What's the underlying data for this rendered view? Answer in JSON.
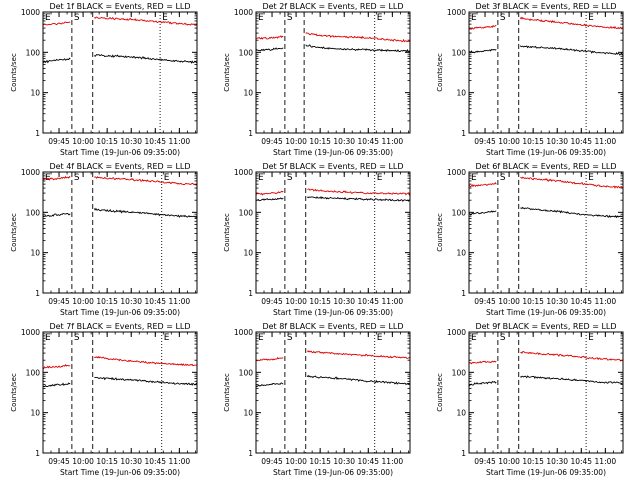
{
  "figure": {
    "series_names": {
      "events": "Events",
      "lld": "LLD"
    },
    "colors": {
      "events": "#000000",
      "lld": "#dd0000",
      "axes": "#000000",
      "background": "#ffffff"
    }
  },
  "chart_data": [
    {
      "type": "line",
      "panel": 1,
      "title": "Det 1f BLACK = Events, RED = LLD",
      "xlabel": "Start Time (19-Jun-06 09:35:00)",
      "ylabel": "Counts/sec",
      "y_scale": "log",
      "ylim": [
        1,
        1000
      ],
      "xlim_minutes_after_0935": [
        0,
        96
      ],
      "x_ticks": [
        "09:45",
        "10:00",
        "10:15",
        "10:30",
        "10:45",
        "11:00"
      ],
      "y_ticks": [
        "1",
        "10",
        "100",
        "1000"
      ],
      "markers": [
        {
          "label": "E",
          "time": "09:35",
          "style": "dotted"
        },
        {
          "label": "S",
          "time": "09:53",
          "style": "dashed"
        },
        {
          "label": "",
          "time": "10:06",
          "style": "dashed"
        },
        {
          "label": "E",
          "time": "10:48",
          "style": "dotted"
        }
      ],
      "series": [
        {
          "name": "Events",
          "color": "#000000",
          "time": [
            "09:35",
            "09:45",
            "09:52",
            "09:53",
            "10:06",
            "10:07",
            "10:15",
            "10:30",
            "10:45",
            "11:00",
            "11:11"
          ],
          "values": [
            57,
            65,
            68,
            null,
            null,
            85,
            82,
            78,
            68,
            60,
            57
          ]
        },
        {
          "name": "LLD",
          "color": "#dd0000",
          "time": [
            "09:35",
            "09:45",
            "09:52",
            "09:53",
            "10:06",
            "10:07",
            "10:15",
            "10:30",
            "10:45",
            "11:00",
            "11:11"
          ],
          "values": [
            480,
            520,
            560,
            null,
            null,
            720,
            700,
            650,
            580,
            520,
            480
          ]
        }
      ]
    },
    {
      "type": "line",
      "panel": 2,
      "title": "Det 2f BLACK = Events, RED = LLD",
      "xlabel": "Start Time (19-Jun-06 09:35:00)",
      "ylabel": "Counts/sec",
      "y_scale": "log",
      "ylim": [
        1,
        1000
      ],
      "xlim_minutes_after_0935": [
        0,
        96
      ],
      "x_ticks": [
        "09:45",
        "10:00",
        "10:15",
        "10:30",
        "10:45",
        "11:00"
      ],
      "y_ticks": [
        "1",
        "10",
        "100",
        "1000"
      ],
      "markers": [
        {
          "label": "E",
          "time": "09:35",
          "style": "dotted"
        },
        {
          "label": "S",
          "time": "09:53",
          "style": "dashed"
        },
        {
          "label": "",
          "time": "10:05",
          "style": "dashed"
        },
        {
          "label": "E",
          "time": "10:49",
          "style": "dotted"
        }
      ],
      "series": [
        {
          "name": "Events",
          "color": "#000000",
          "time": [
            "09:35",
            "09:45",
            "09:52",
            "09:53",
            "10:05",
            "10:06",
            "10:15",
            "10:30",
            "10:45",
            "11:00",
            "11:11"
          ],
          "values": [
            110,
            120,
            125,
            null,
            null,
            150,
            130,
            120,
            115,
            110,
            108
          ]
        },
        {
          "name": "LLD",
          "color": "#dd0000",
          "time": [
            "09:35",
            "09:45",
            "09:52",
            "09:53",
            "10:05",
            "10:06",
            "10:15",
            "10:30",
            "10:45",
            "11:00",
            "11:11"
          ],
          "values": [
            220,
            230,
            250,
            null,
            null,
            300,
            260,
            240,
            230,
            200,
            190
          ]
        }
      ]
    },
    {
      "type": "line",
      "panel": 3,
      "title": "Det 3f BLACK = Events, RED = LLD",
      "xlabel": "Start Time (19-Jun-06 09:35:00)",
      "ylabel": "Counts/sec",
      "y_scale": "log",
      "ylim": [
        1,
        1000
      ],
      "xlim_minutes_after_0935": [
        0,
        96
      ],
      "x_ticks": [
        "09:45",
        "10:00",
        "10:15",
        "10:30",
        "10:45",
        "11:00"
      ],
      "y_ticks": [
        "1",
        "10",
        "100",
        "1000"
      ],
      "markers": [
        {
          "label": "E",
          "time": "09:35",
          "style": "dotted"
        },
        {
          "label": "S",
          "time": "09:53",
          "style": "dashed"
        },
        {
          "label": "",
          "time": "10:06",
          "style": "dashed"
        },
        {
          "label": "E",
          "time": "10:48",
          "style": "dotted"
        }
      ],
      "series": [
        {
          "name": "Events",
          "color": "#000000",
          "time": [
            "09:35",
            "09:45",
            "09:52",
            "09:53",
            "10:06",
            "10:07",
            "10:15",
            "10:30",
            "10:45",
            "11:00",
            "11:11"
          ],
          "values": [
            100,
            110,
            115,
            null,
            null,
            140,
            135,
            125,
            110,
            95,
            90
          ]
        },
        {
          "name": "LLD",
          "color": "#dd0000",
          "time": [
            "09:35",
            "09:45",
            "09:52",
            "09:53",
            "10:06",
            "10:07",
            "10:15",
            "10:30",
            "10:45",
            "11:00",
            "11:11"
          ],
          "values": [
            380,
            420,
            450,
            null,
            null,
            700,
            640,
            560,
            480,
            420,
            400
          ]
        }
      ]
    },
    {
      "type": "line",
      "panel": 4,
      "title": "Det 4f BLACK = Events, RED = LLD",
      "xlabel": "Start Time (19-Jun-06 09:35:00)",
      "ylabel": "Counts/sec",
      "y_scale": "log",
      "ylim": [
        1,
        1000
      ],
      "xlim_minutes_after_0935": [
        0,
        96
      ],
      "x_ticks": [
        "09:45",
        "10:00",
        "10:15",
        "10:30",
        "10:45",
        "11:00"
      ],
      "y_ticks": [
        "1",
        "10",
        "100",
        "1000"
      ],
      "markers": [
        {
          "label": "E",
          "time": "09:35",
          "style": "dotted"
        },
        {
          "label": "S",
          "time": "09:53",
          "style": "dashed"
        },
        {
          "label": "",
          "time": "10:06",
          "style": "dashed"
        },
        {
          "label": "E",
          "time": "10:49",
          "style": "dotted"
        }
      ],
      "series": [
        {
          "name": "Events",
          "color": "#000000",
          "time": [
            "09:35",
            "09:45",
            "09:52",
            "09:53",
            "10:06",
            "10:07",
            "10:15",
            "10:30",
            "10:45",
            "11:00",
            "11:11"
          ],
          "values": [
            80,
            88,
            92,
            null,
            null,
            120,
            110,
            100,
            90,
            80,
            78
          ]
        },
        {
          "name": "LLD",
          "color": "#dd0000",
          "time": [
            "09:35",
            "09:45",
            "09:52",
            "09:53",
            "10:06",
            "10:07",
            "10:15",
            "10:30",
            "10:45",
            "11:00",
            "11:11"
          ],
          "values": [
            650,
            700,
            740,
            null,
            null,
            750,
            700,
            650,
            580,
            520,
            490
          ]
        }
      ]
    },
    {
      "type": "line",
      "panel": 5,
      "title": "Det 5f BLACK = Events, RED = LLD",
      "xlabel": "Start Time (19-Jun-06 09:35:00)",
      "ylabel": "Counts/sec",
      "y_scale": "log",
      "ylim": [
        1,
        1000
      ],
      "xlim_minutes_after_0935": [
        0,
        96
      ],
      "x_ticks": [
        "09:45",
        "10:00",
        "10:15",
        "10:30",
        "10:45",
        "11:00"
      ],
      "y_ticks": [
        "1",
        "10",
        "100",
        "1000"
      ],
      "markers": [
        {
          "label": "E",
          "time": "09:35",
          "style": "dotted"
        },
        {
          "label": "S",
          "time": "09:53",
          "style": "dashed"
        },
        {
          "label": "",
          "time": "10:06",
          "style": "dashed"
        },
        {
          "label": "E",
          "time": "10:49",
          "style": "dotted"
        }
      ],
      "series": [
        {
          "name": "Events",
          "color": "#000000",
          "time": [
            "09:35",
            "09:45",
            "09:52",
            "09:53",
            "10:06",
            "10:07",
            "10:15",
            "10:30",
            "10:45",
            "11:00",
            "11:11"
          ],
          "values": [
            200,
            210,
            220,
            null,
            null,
            240,
            230,
            220,
            210,
            200,
            195
          ]
        },
        {
          "name": "LLD",
          "color": "#dd0000",
          "time": [
            "09:35",
            "09:45",
            "09:52",
            "09:53",
            "10:06",
            "10:07",
            "10:15",
            "10:30",
            "10:45",
            "11:00",
            "11:11"
          ],
          "values": [
            280,
            300,
            320,
            null,
            null,
            380,
            340,
            320,
            300,
            290,
            285
          ]
        }
      ]
    },
    {
      "type": "line",
      "panel": 6,
      "title": "Det 6f BLACK = Events, RED = LLD",
      "xlabel": "Start Time (19-Jun-06 09:35:00)",
      "ylabel": "Counts/sec",
      "y_scale": "log",
      "ylim": [
        1,
        1000
      ],
      "xlim_minutes_after_0935": [
        0,
        96
      ],
      "x_ticks": [
        "09:45",
        "10:00",
        "10:15",
        "10:30",
        "10:45",
        "11:00"
      ],
      "y_ticks": [
        "1",
        "10",
        "100",
        "1000"
      ],
      "markers": [
        {
          "label": "E",
          "time": "09:35",
          "style": "dotted"
        },
        {
          "label": "S",
          "time": "09:53",
          "style": "dashed"
        },
        {
          "label": "",
          "time": "10:06",
          "style": "dashed"
        },
        {
          "label": "E",
          "time": "10:48",
          "style": "dotted"
        }
      ],
      "series": [
        {
          "name": "Events",
          "color": "#000000",
          "time": [
            "09:35",
            "09:45",
            "09:52",
            "09:53",
            "10:06",
            "10:07",
            "10:15",
            "10:30",
            "10:45",
            "11:00",
            "11:11"
          ],
          "values": [
            90,
            100,
            105,
            null,
            null,
            130,
            120,
            105,
            90,
            80,
            78
          ]
        },
        {
          "name": "LLD",
          "color": "#dd0000",
          "time": [
            "09:35",
            "09:45",
            "09:52",
            "09:53",
            "10:06",
            "10:07",
            "10:15",
            "10:30",
            "10:45",
            "11:00",
            "11:11"
          ],
          "values": [
            450,
            480,
            520,
            null,
            null,
            720,
            680,
            600,
            520,
            440,
            420
          ]
        }
      ]
    },
    {
      "type": "line",
      "panel": 7,
      "title": "Det 7f BLACK = Events, RED = LLD",
      "xlabel": "Start Time (19-Jun-06 09:35:00)",
      "ylabel": "Counts/sec",
      "y_scale": "log",
      "ylim": [
        1,
        1000
      ],
      "xlim_minutes_after_0935": [
        0,
        96
      ],
      "x_ticks": [
        "09:45",
        "10:00",
        "10:15",
        "10:30",
        "10:45",
        "11:00"
      ],
      "y_ticks": [
        "1",
        "10",
        "100",
        "1000"
      ],
      "markers": [
        {
          "label": "E",
          "time": "09:35",
          "style": "dotted"
        },
        {
          "label": "S",
          "time": "09:53",
          "style": "dashed"
        },
        {
          "label": "",
          "time": "10:06",
          "style": "dashed"
        },
        {
          "label": "E",
          "time": "10:49",
          "style": "dotted"
        }
      ],
      "series": [
        {
          "name": "Events",
          "color": "#000000",
          "time": [
            "09:35",
            "09:45",
            "09:52",
            "09:53",
            "10:06",
            "10:07",
            "10:15",
            "10:30",
            "10:45",
            "11:00",
            "11:11"
          ],
          "values": [
            45,
            50,
            52,
            null,
            null,
            75,
            70,
            65,
            58,
            52,
            50
          ]
        },
        {
          "name": "LLD",
          "color": "#dd0000",
          "time": [
            "09:35",
            "09:45",
            "09:52",
            "09:53",
            "10:06",
            "10:07",
            "10:15",
            "10:30",
            "10:45",
            "11:00",
            "11:11"
          ],
          "values": [
            130,
            140,
            150,
            null,
            null,
            240,
            220,
            190,
            170,
            155,
            150
          ]
        }
      ]
    },
    {
      "type": "line",
      "panel": 8,
      "title": "Det 8f BLACK = Events, RED = LLD",
      "xlabel": "Start Time (19-Jun-06 09:35:00)",
      "ylabel": "Counts/sec",
      "y_scale": "log",
      "ylim": [
        1,
        1000
      ],
      "xlim_minutes_after_0935": [
        0,
        96
      ],
      "x_ticks": [
        "09:45",
        "10:00",
        "10:15",
        "10:30",
        "10:45",
        "11:00"
      ],
      "y_ticks": [
        "1",
        "10",
        "100",
        "1000"
      ],
      "markers": [
        {
          "label": "E",
          "time": "09:35",
          "style": "dotted"
        },
        {
          "label": "S",
          "time": "09:53",
          "style": "dashed"
        },
        {
          "label": "",
          "time": "10:06",
          "style": "dashed"
        },
        {
          "label": "E",
          "time": "10:49",
          "style": "dotted"
        }
      ],
      "series": [
        {
          "name": "Events",
          "color": "#000000",
          "time": [
            "09:35",
            "09:45",
            "09:52",
            "09:53",
            "10:06",
            "10:07",
            "10:15",
            "10:30",
            "10:45",
            "11:00",
            "11:11"
          ],
          "values": [
            45,
            50,
            52,
            null,
            null,
            80,
            75,
            70,
            60,
            55,
            52
          ]
        },
        {
          "name": "LLD",
          "color": "#dd0000",
          "time": [
            "09:35",
            "09:45",
            "09:52",
            "09:53",
            "10:06",
            "10:07",
            "10:15",
            "10:30",
            "10:45",
            "11:00",
            "11:11"
          ],
          "values": [
            200,
            210,
            230,
            null,
            null,
            330,
            310,
            280,
            260,
            240,
            230
          ]
        }
      ]
    },
    {
      "type": "line",
      "panel": 9,
      "title": "Det 9f BLACK = Events, RED = LLD",
      "xlabel": "Start Time (19-Jun-06 09:35:00)",
      "ylabel": "Counts/sec",
      "y_scale": "log",
      "ylim": [
        1,
        1000
      ],
      "xlim_minutes_after_0935": [
        0,
        96
      ],
      "x_ticks": [
        "09:45",
        "10:00",
        "10:15",
        "10:30",
        "10:45",
        "11:00"
      ],
      "y_ticks": [
        "1",
        "10",
        "100",
        "1000"
      ],
      "markers": [
        {
          "label": "E",
          "time": "09:35",
          "style": "dotted"
        },
        {
          "label": "S",
          "time": "09:53",
          "style": "dashed"
        },
        {
          "label": "",
          "time": "10:06",
          "style": "dashed"
        },
        {
          "label": "E",
          "time": "10:48",
          "style": "dotted"
        }
      ],
      "series": [
        {
          "name": "Events",
          "color": "#000000",
          "time": [
            "09:35",
            "09:45",
            "09:52",
            "09:53",
            "10:06",
            "10:07",
            "10:15",
            "10:30",
            "10:45",
            "11:00",
            "11:11"
          ],
          "values": [
            50,
            55,
            58,
            null,
            null,
            80,
            75,
            70,
            62,
            56,
            55
          ]
        },
        {
          "name": "LLD",
          "color": "#dd0000",
          "time": [
            "09:35",
            "09:45",
            "09:52",
            "09:53",
            "10:06",
            "10:07",
            "10:15",
            "10:30",
            "10:45",
            "11:00",
            "11:11"
          ],
          "values": [
            170,
            180,
            190,
            null,
            null,
            320,
            300,
            270,
            240,
            210,
            200
          ]
        }
      ]
    }
  ]
}
